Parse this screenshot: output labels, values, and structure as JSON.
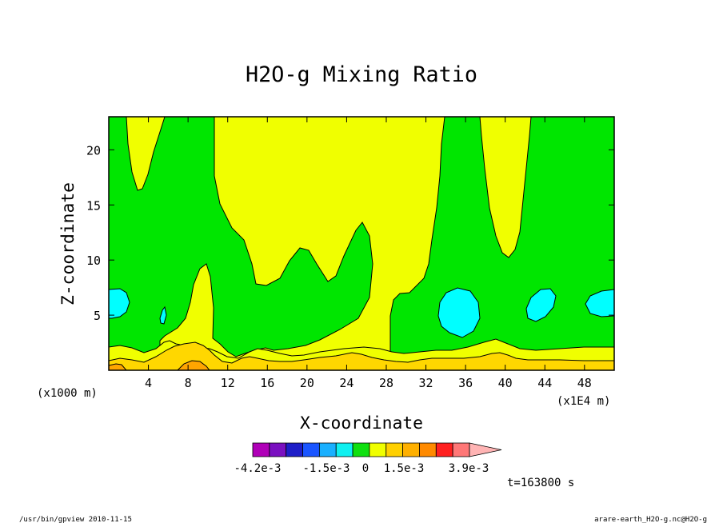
{
  "chart_data": {
    "type": "heatmap",
    "title": "H2O-g Mixing Ratio",
    "xlabel": "X-coordinate",
    "ylabel": "Z-coordinate",
    "x_scale_note": "(x1E4 m)",
    "y_scale_note": "(x1000 m)",
    "x_ticks": [
      "4",
      "8",
      "12",
      "16",
      "20",
      "24",
      "28",
      "32",
      "36",
      "40",
      "44",
      "48"
    ],
    "y_ticks": [
      "5",
      "10",
      "15",
      "20"
    ],
    "xlim": [
      0,
      51
    ],
    "ylim": [
      0,
      23
    ],
    "colorbar": {
      "colors": [
        "#b000b8",
        "#7a10c0",
        "#1e1ec8",
        "#1a55ff",
        "#1ab0ff",
        "#10f0f0",
        "#10e010",
        "#f0ff00",
        "#ffd000",
        "#ffb000",
        "#ff8a00",
        "#ff2020",
        "#ff7777",
        "#ffb4b4"
      ],
      "tick_labels": [
        "-4.2e-3",
        "-1.5e-3",
        "0",
        "1.5e-3",
        "3.9e-3"
      ]
    },
    "levels_shown": {
      "cyan": "#00ffff",
      "green": "#00e600",
      "yellow": "#f0ff00",
      "gold": "#ffd700",
      "orange": "#ffa500"
    },
    "time_label": "t=163800 s"
  },
  "footer": {
    "left": "/usr/bin/gpview  2010-11-15",
    "right": "arare-earth_H2O-g.nc@H2O-g"
  }
}
